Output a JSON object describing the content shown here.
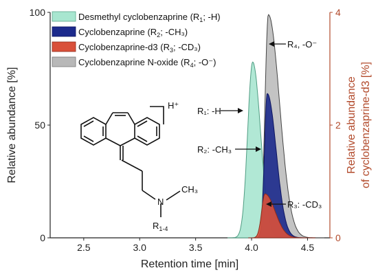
{
  "chart_data": {
    "type": "area",
    "xlabel": "Retention time [min]",
    "ylabel": "Relative abundance [%]",
    "ylabel_right": [
      "Relative abundance",
      "of cyclobenzaprine-d3 [%]"
    ],
    "xlim": [
      2.2,
      4.7
    ],
    "ylim_left": [
      0,
      100
    ],
    "ylim_right": [
      0,
      4
    ],
    "x_ticks": [
      "2.5",
      "3.0",
      "3.5",
      "4.0",
      "4.5"
    ],
    "y_ticks_left": [
      "0",
      "50",
      "100"
    ],
    "y_ticks_right": [
      "0",
      "2",
      "4"
    ],
    "legend_position": "top-left",
    "series": [
      {
        "label_main": "Desmethyl cyclobenzaprine (R",
        "label_sub": "1",
        "label_tail": "; -H)",
        "color": "#a8e6d0",
        "axis": "left",
        "peak_x": 4.01,
        "peak_y": 78
      },
      {
        "label_main": "Cyclobenzaprine (R",
        "label_sub": "2",
        "label_tail": "; -CH₃)",
        "color": "#1c2a8c",
        "axis": "left",
        "peak_x": 4.14,
        "peak_y": 64
      },
      {
        "label_main": "Cyclobenzaprine-d3 (R",
        "label_sub": "3",
        "label_tail": "; -CD₃)",
        "color": "#d9503a",
        "axis": "right",
        "peak_x": 4.12,
        "peak_y": 0.78
      },
      {
        "label_main": "Cyclobenzaprine N-oxide (R",
        "label_sub": "4",
        "label_tail": "; -O⁻)",
        "color": "#b8b8b8",
        "axis": "left",
        "peak_x": 4.15,
        "peak_y": 99
      }
    ],
    "annotations": {
      "r1": "R₁: -H",
      "r2": "R₂: -CH₃",
      "r3": "R₃: -CD₃",
      "r4": "R₄, -O⁻"
    },
    "structure_labels": {
      "h_plus": "H⁺",
      "n": "N",
      "ch3": "CH₃",
      "r_main": "R",
      "r_sub": "1-4"
    }
  }
}
